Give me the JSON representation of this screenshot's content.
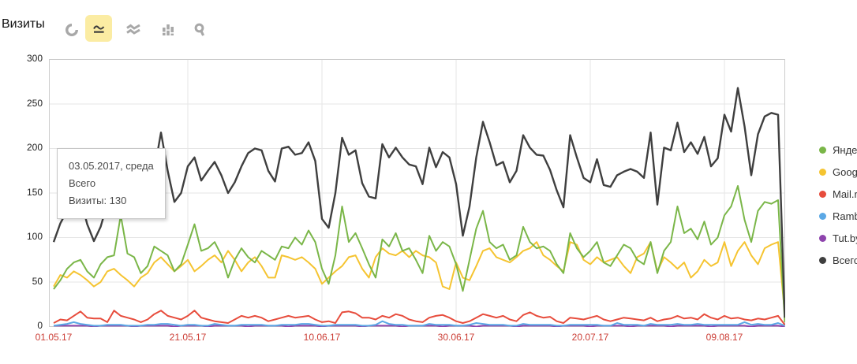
{
  "header": {
    "title": "Визиты",
    "chart_types": [
      {
        "key": "pie",
        "icon": "pie-chart-icon",
        "selected": false
      },
      {
        "key": "line",
        "icon": "line-chart-icon",
        "selected": true
      },
      {
        "key": "stacked",
        "icon": "stacked-area-icon",
        "selected": false
      },
      {
        "key": "bar",
        "icon": "bar-chart-icon",
        "selected": false
      },
      {
        "key": "map",
        "icon": "map-pin-icon",
        "selected": false
      }
    ]
  },
  "tooltip": {
    "date": "03.05.2017, среда",
    "series": "Всего",
    "value_line": "Визиты: 130"
  },
  "chart_data": {
    "type": "line",
    "title": "Визиты",
    "x_unit": "day",
    "x_start": "01.05.17",
    "x_tick_labels": [
      "01.05.17",
      "21.05.17",
      "10.06.17",
      "30.06.17",
      "20.07.17",
      "09.08.17"
    ],
    "x_tick_positions": [
      0,
      20,
      40,
      60,
      80,
      100
    ],
    "y_ticks": [
      0,
      50,
      100,
      150,
      200,
      250,
      300
    ],
    "ylim": [
      0,
      300
    ],
    "grid": true,
    "legend_position": "right",
    "axis_colors": {
      "x_labels": "#cb3d35",
      "y_labels": "#222222",
      "grid": "#e6e6e6",
      "border": "#cccccc"
    },
    "series": [
      {
        "key": "yandex",
        "name": "Яндекс",
        "color": "#7AB648",
        "values": [
          42,
          52,
          65,
          72,
          75,
          62,
          55,
          70,
          78,
          80,
          125,
          82,
          78,
          60,
          68,
          90,
          85,
          80,
          62,
          70,
          92,
          115,
          85,
          88,
          95,
          80,
          55,
          75,
          88,
          78,
          72,
          85,
          80,
          75,
          90,
          88,
          100,
          92,
          108,
          95,
          65,
          48,
          80,
          135,
          95,
          105,
          88,
          70,
          55,
          98,
          90,
          105,
          85,
          88,
          75,
          60,
          102,
          85,
          95,
          90,
          70,
          40,
          75,
          110,
          130,
          95,
          88,
          92,
          75,
          80,
          112,
          95,
          88,
          90,
          85,
          70,
          60,
          105,
          88,
          78,
          85,
          95,
          72,
          68,
          80,
          92,
          88,
          75,
          70,
          95,
          60,
          85,
          95,
          135,
          105,
          110,
          98,
          118,
          92,
          100,
          125,
          135,
          158,
          120,
          95,
          130,
          140,
          138,
          142,
          5
        ]
      },
      {
        "key": "google",
        "name": "Google",
        "color": "#F5C431",
        "values": [
          45,
          58,
          55,
          62,
          58,
          52,
          45,
          50,
          62,
          65,
          58,
          52,
          45,
          55,
          60,
          72,
          78,
          70,
          62,
          68,
          75,
          62,
          68,
          75,
          80,
          72,
          85,
          75,
          62,
          72,
          78,
          68,
          55,
          55,
          80,
          78,
          75,
          78,
          72,
          65,
          48,
          55,
          62,
          68,
          78,
          80,
          65,
          55,
          78,
          88,
          82,
          80,
          85,
          78,
          85,
          80,
          78,
          72,
          45,
          42,
          72,
          55,
          52,
          68,
          85,
          88,
          78,
          75,
          72,
          78,
          85,
          88,
          95,
          80,
          75,
          68,
          62,
          95,
          92,
          75,
          70,
          78,
          72,
          75,
          78,
          68,
          60,
          78,
          82,
          95,
          62,
          78,
          72,
          65,
          72,
          55,
          62,
          75,
          68,
          72,
          95,
          68,
          85,
          95,
          80,
          70,
          88,
          92,
          95,
          15
        ]
      },
      {
        "key": "mailru",
        "name": "Mail.ru",
        "color": "#E74C3C",
        "values": [
          4,
          8,
          7,
          12,
          17,
          10,
          9,
          9,
          5,
          18,
          12,
          10,
          8,
          5,
          8,
          14,
          18,
          12,
          10,
          8,
          12,
          18,
          10,
          8,
          6,
          5,
          4,
          8,
          12,
          10,
          12,
          10,
          6,
          8,
          10,
          12,
          10,
          11,
          12,
          8,
          5,
          6,
          4,
          16,
          17,
          15,
          10,
          10,
          8,
          12,
          10,
          14,
          12,
          8,
          6,
          5,
          10,
          12,
          13,
          10,
          6,
          4,
          6,
          10,
          14,
          12,
          10,
          12,
          8,
          6,
          13,
          16,
          12,
          10,
          11,
          6,
          4,
          10,
          9,
          8,
          10,
          12,
          8,
          6,
          8,
          10,
          9,
          8,
          7,
          10,
          6,
          8,
          9,
          12,
          9,
          10,
          8,
          14,
          10,
          8,
          12,
          9,
          10,
          8,
          7,
          9,
          8,
          10,
          12,
          2
        ]
      },
      {
        "key": "rambler",
        "name": "Rambler",
        "color": "#5BA8E5",
        "values": [
          1,
          2,
          3,
          5,
          3,
          2,
          1,
          1,
          2,
          2,
          2,
          1,
          1,
          1,
          2,
          2,
          3,
          3,
          2,
          1,
          2,
          2,
          1,
          1,
          3,
          2,
          1,
          1,
          2,
          2,
          2,
          2,
          1,
          1,
          2,
          2,
          2,
          3,
          3,
          2,
          1,
          1,
          2,
          2,
          2,
          2,
          1,
          1,
          2,
          6,
          3,
          2,
          2,
          1,
          1,
          1,
          3,
          2,
          2,
          2,
          1,
          1,
          2,
          4,
          3,
          2,
          2,
          2,
          1,
          1,
          3,
          2,
          2,
          2,
          2,
          1,
          1,
          2,
          2,
          2,
          2,
          2,
          1,
          1,
          4,
          2,
          2,
          2,
          1,
          3,
          2,
          2,
          2,
          3,
          2,
          2,
          3,
          2,
          2,
          2,
          2,
          2,
          2,
          5,
          2,
          3,
          2,
          2,
          4,
          1
        ]
      },
      {
        "key": "tutby",
        "name": "Tut.by",
        "color": "#8E44AD",
        "values": [
          1,
          1,
          1,
          1,
          1,
          1,
          0,
          1,
          1,
          1,
          1,
          1,
          0,
          1,
          1,
          1,
          1,
          1,
          0,
          1,
          1,
          1,
          1,
          0,
          1,
          1,
          1,
          1,
          1,
          0,
          1,
          1,
          1,
          1,
          1,
          0,
          1,
          1,
          1,
          1,
          0,
          1,
          1,
          1,
          1,
          1,
          0,
          1,
          1,
          1,
          1,
          1,
          0,
          1,
          1,
          1,
          1,
          1,
          0,
          1,
          1,
          1,
          1,
          0,
          1,
          1,
          1,
          1,
          1,
          0,
          1,
          1,
          1,
          1,
          1,
          0,
          1,
          1,
          1,
          1,
          0,
          1,
          1,
          1,
          1,
          1,
          0,
          1,
          1,
          1,
          1,
          1,
          0,
          1,
          1,
          1,
          1,
          1,
          0,
          1,
          1,
          1,
          1,
          1,
          0,
          1,
          1,
          1,
          1,
          0
        ]
      },
      {
        "key": "total",
        "name": "Всего",
        "color": "#3F3F3F",
        "values": [
          95,
          116,
          130,
          142,
          144,
          115,
          96,
          112,
          138,
          155,
          150,
          140,
          130,
          128,
          135,
          175,
          218,
          175,
          140,
          150,
          180,
          190,
          164,
          175,
          185,
          170,
          150,
          162,
          180,
          195,
          200,
          198,
          175,
          163,
          200,
          202,
          193,
          195,
          207,
          186,
          121,
          111,
          150,
          212,
          193,
          198,
          161,
          146,
          144,
          205,
          190,
          201,
          190,
          182,
          180,
          160,
          201,
          179,
          196,
          190,
          160,
          102,
          135,
          190,
          230,
          207,
          181,
          185,
          162,
          175,
          215,
          201,
          193,
          192,
          176,
          153,
          134,
          215,
          190,
          167,
          162,
          188,
          159,
          157,
          170,
          174,
          177,
          174,
          167,
          218,
          137,
          201,
          198,
          229,
          196,
          207,
          194,
          213,
          180,
          189,
          238,
          219,
          268,
          225,
          170,
          216,
          236,
          240,
          238,
          10
        ]
      }
    ]
  }
}
